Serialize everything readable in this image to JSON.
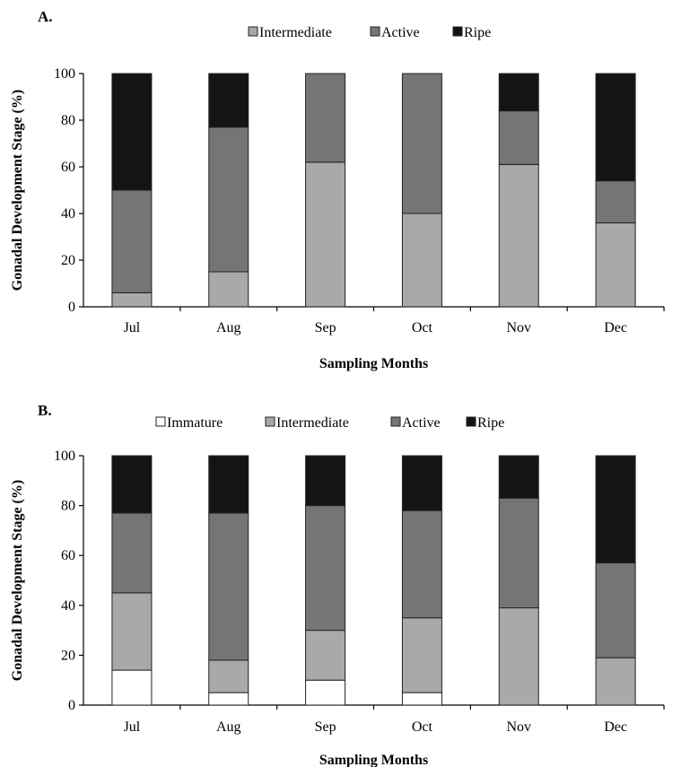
{
  "colors": {
    "Immature": "#ffffff",
    "Intermediate": "#a9a9a9",
    "Active": "#757575",
    "Ripe": "#141414",
    "border": "#222222"
  },
  "chart_data": [
    {
      "type": "bar",
      "stacked": true,
      "panel_label": "A.",
      "categories": [
        "Jul",
        "Aug",
        "Sep",
        "Oct",
        "Nov",
        "Dec"
      ],
      "series": [
        {
          "name": "Intermediate",
          "values": [
            6,
            15,
            62,
            40,
            61,
            36
          ]
        },
        {
          "name": "Active",
          "values": [
            44,
            62,
            38,
            60,
            23,
            18
          ]
        },
        {
          "name": "Ripe",
          "values": [
            50,
            23,
            0,
            0,
            16,
            46
          ]
        }
      ],
      "xlabel": "Sampling Months",
      "ylabel": "Gonadal Development Stage (%)",
      "ylim": [
        0,
        100
      ],
      "yticks": [
        "0",
        "20",
        "40",
        "60",
        "80",
        "100"
      ],
      "legend_position": "top",
      "grid": false
    },
    {
      "type": "bar",
      "stacked": true,
      "panel_label": "B.",
      "categories": [
        "Jul",
        "Aug",
        "Sep",
        "Oct",
        "Nov",
        "Dec"
      ],
      "series": [
        {
          "name": "Immature",
          "values": [
            14,
            5,
            10,
            5,
            0,
            0
          ]
        },
        {
          "name": "Intermediate",
          "values": [
            31,
            13,
            20,
            30,
            39,
            19
          ]
        },
        {
          "name": "Active",
          "values": [
            32,
            59,
            50,
            43,
            44,
            38
          ]
        },
        {
          "name": "Ripe",
          "values": [
            23,
            23,
            20,
            22,
            17,
            43
          ]
        }
      ],
      "xlabel": "Sampling Months",
      "ylabel": "Gonadal Development Stage (%)",
      "ylim": [
        0,
        100
      ],
      "yticks": [
        "0",
        "20",
        "40",
        "60",
        "80",
        "100"
      ],
      "legend_position": "top",
      "grid": false
    }
  ]
}
